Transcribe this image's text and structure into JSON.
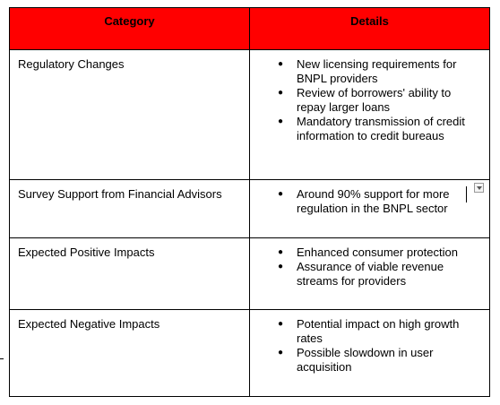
{
  "table": {
    "header": [
      "Category",
      "Details"
    ],
    "rows": [
      {
        "category": "Regulatory Changes",
        "details": [
          "New licensing requirements for BNPL providers",
          "Review of borrowers' ability to repay larger loans",
          "Mandatory transmission of credit information to credit bureaus"
        ]
      },
      {
        "category": "Survey Support from Financial Advisors",
        "details": [
          "Around 90% support for more regulation in the BNPL sector"
        ]
      },
      {
        "category": "Expected Positive Impacts",
        "details": [
          "Enhanced consumer protection",
          "Assurance of viable revenue streams for providers"
        ]
      },
      {
        "category": "Expected Negative Impacts",
        "details": [
          "Potential impact on high growth rates",
          "Possible slowdown in user acquisition"
        ]
      }
    ]
  }
}
